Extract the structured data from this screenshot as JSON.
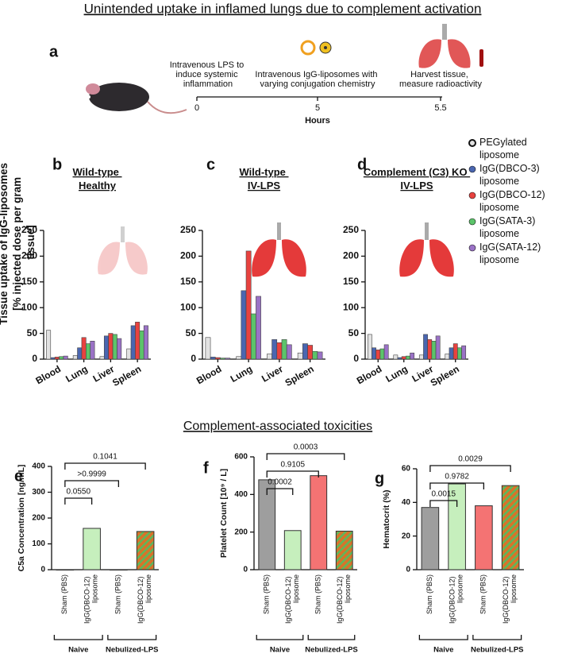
{
  "title": "Unintended uptake in inflamed lungs due to complement activation",
  "timeline": {
    "panel_label": "a",
    "axis_label": "Hours",
    "events": [
      {
        "tick": 0,
        "text": "Intravenous LPS to induce systemic inflammation"
      },
      {
        "tick": 5,
        "text": "Intravenous IgG-liposomes with varying conjugation chemistry"
      },
      {
        "tick": 5.5,
        "text": "Harvest tissue, measure radioactivity"
      }
    ]
  },
  "section_title": "Complement-associated toxicities",
  "chart_data": [
    {
      "type": "bar",
      "panel_label": "b",
      "title": "Wild-type Healthy",
      "ylabel": "Tissue uptake of IgG-liposomes [% injected dose per gram tissue]",
      "categories": [
        "Blood",
        "Lung",
        "Liver",
        "Spleen"
      ],
      "series": [
        {
          "name": "PEGylated liposome",
          "color": "#e2e2e2",
          "values": [
            56,
            7,
            5,
            20
          ]
        },
        {
          "name": "IgG(DBCO-3) liposome",
          "color": "#4a66b0",
          "values": [
            3,
            22,
            45,
            65
          ]
        },
        {
          "name": "IgG(DBCO-12) liposome",
          "color": "#e8423f",
          "values": [
            4,
            42,
            50,
            72
          ]
        },
        {
          "name": "IgG(SATA-3) liposome",
          "color": "#5cc46a",
          "values": [
            5,
            30,
            48,
            55
          ]
        },
        {
          "name": "IgG(SATA-12) liposome",
          "color": "#9a72c6",
          "values": [
            6,
            35,
            40,
            65
          ]
        }
      ],
      "ylim": [
        0,
        250
      ],
      "yticks": [
        0,
        50,
        100,
        150,
        200,
        250
      ]
    },
    {
      "type": "bar",
      "panel_label": "c",
      "title": "Wild-type IV-LPS",
      "categories": [
        "Blood",
        "Lung",
        "Liver",
        "Spleen"
      ],
      "series": [
        {
          "name": "PEGylated liposome",
          "color": "#e2e2e2",
          "values": [
            42,
            5,
            10,
            12
          ]
        },
        {
          "name": "IgG(DBCO-3) liposome",
          "color": "#4a66b0",
          "values": [
            4,
            133,
            38,
            30
          ]
        },
        {
          "name": "IgG(DBCO-12) liposome",
          "color": "#e8423f",
          "values": [
            3,
            210,
            32,
            27
          ]
        },
        {
          "name": "IgG(SATA-3) liposome",
          "color": "#5cc46a",
          "values": [
            2,
            88,
            38,
            15
          ]
        },
        {
          "name": "IgG(SATA-12) liposome",
          "color": "#9a72c6",
          "values": [
            2,
            122,
            28,
            14
          ]
        }
      ],
      "ylim": [
        0,
        250
      ],
      "yticks": [
        0,
        50,
        100,
        150,
        200,
        250
      ]
    },
    {
      "type": "bar",
      "panel_label": "d",
      "title": "Complement (C3) KO IV-LPS",
      "legend": "right",
      "categories": [
        "Blood",
        "Lung",
        "Liver",
        "Spleen"
      ],
      "series": [
        {
          "name": "PEGylated liposome",
          "color": "#e2e2e2",
          "values": [
            48,
            8,
            8,
            10
          ]
        },
        {
          "name": "IgG(DBCO-3) liposome",
          "color": "#4a66b0",
          "values": [
            22,
            3,
            48,
            22
          ]
        },
        {
          "name": "IgG(DBCO-12) liposome",
          "color": "#e8423f",
          "values": [
            18,
            5,
            38,
            30
          ]
        },
        {
          "name": "IgG(SATA-3) liposome",
          "color": "#5cc46a",
          "values": [
            20,
            6,
            35,
            22
          ]
        },
        {
          "name": "IgG(SATA-12) liposome",
          "color": "#9a72c6",
          "values": [
            28,
            12,
            45,
            26
          ]
        }
      ],
      "ylim": [
        0,
        250
      ],
      "yticks": [
        0,
        50,
        100,
        150,
        200,
        250
      ]
    },
    {
      "type": "bar",
      "panel_label": "e",
      "ylabel": "C5a Concentration [ng/mL]",
      "categories": [
        "Sham (PBS)",
        "IgG(DBCO-12) liposome",
        "Sham (PBS)",
        "IgG(DBCO-12) liposome"
      ],
      "values": [
        0,
        160,
        0,
        148
      ],
      "colors": [
        "#9e9e9e",
        "#c6efbd",
        "#f47373",
        "#d9722a"
      ],
      "hatch": [
        false,
        false,
        false,
        true
      ],
      "groups": [
        "Naive",
        "Nebulized-LPS"
      ],
      "comparisons": [
        "0.0550",
        ">0.9999",
        "0.1041"
      ],
      "ylim": [
        0,
        400
      ],
      "yticks": [
        0,
        100,
        200,
        300,
        400
      ]
    },
    {
      "type": "bar",
      "panel_label": "f",
      "ylabel": "Platelet Count [10⁹ / L]",
      "categories": [
        "Sham (PBS)",
        "IgG(DBCO-12) liposome",
        "Sham (PBS)",
        "IgG(DBCO-12) liposome"
      ],
      "values": [
        478,
        208,
        500,
        205
      ],
      "colors": [
        "#9e9e9e",
        "#c6efbd",
        "#f47373",
        "#d9722a"
      ],
      "hatch": [
        false,
        false,
        false,
        true
      ],
      "groups": [
        "Naive",
        "Nebulized-LPS"
      ],
      "comparisons": [
        "0.0002",
        "0.9105",
        "0.0003"
      ],
      "ylim": [
        0,
        600
      ],
      "yticks": [
        0,
        200,
        400,
        600
      ]
    },
    {
      "type": "bar",
      "panel_label": "g",
      "ylabel": "Hematocrit (%)",
      "categories": [
        "Sham (PBS)",
        "IgG(DBCO-12) liposome",
        "Sham (PBS)",
        "IgG(DBCO-12) liposome"
      ],
      "values": [
        37,
        51,
        38,
        50
      ],
      "colors": [
        "#9e9e9e",
        "#c6efbd",
        "#f47373",
        "#d9722a"
      ],
      "hatch": [
        false,
        false,
        false,
        true
      ],
      "groups": [
        "Naive",
        "Nebulized-LPS"
      ],
      "comparisons": [
        "0.0015",
        "0.9782",
        "0.0029"
      ],
      "ylim": [
        0,
        60
      ],
      "yticks": [
        0,
        20,
        40,
        60
      ]
    }
  ]
}
